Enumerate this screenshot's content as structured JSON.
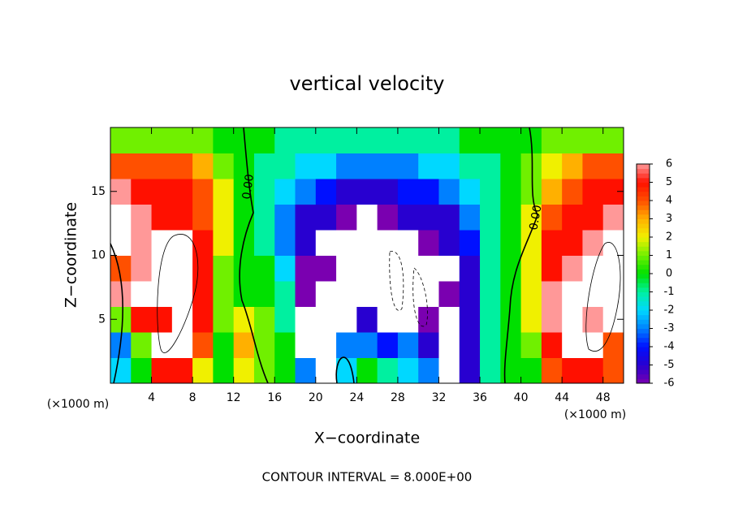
{
  "chart_data": {
    "type": "heatmap",
    "title": "vertical velocity",
    "xlabel": "X−coordinate",
    "ylabel": "Z−coordinate",
    "x_unit_label": "(×1000 m)",
    "footer": "CONTOUR INTERVAL = 8.000E+00",
    "contour_labels": [
      "0.00",
      "0.00"
    ],
    "xlim": [
      0,
      50
    ],
    "ylim": [
      0,
      20
    ],
    "xticks": [
      4,
      8,
      12,
      16,
      20,
      24,
      28,
      32,
      36,
      40,
      44,
      48
    ],
    "yticks": [
      5,
      10,
      15
    ],
    "x": [
      1,
      3,
      5,
      7,
      9,
      11,
      13,
      15,
      17,
      19,
      21,
      23,
      25,
      27,
      29,
      31,
      33,
      35,
      37,
      39,
      41,
      43,
      45,
      47,
      49
    ],
    "z": [
      1,
      3,
      5,
      7,
      9,
      11,
      13,
      15,
      17,
      19
    ],
    "values": [
      [
        -2,
        0,
        5,
        5,
        2,
        0,
        2,
        1,
        0,
        -3,
        -7,
        -2,
        0,
        -1,
        -2,
        -3,
        -7,
        -5,
        -1,
        0,
        0,
        4,
        5,
        5,
        4
      ],
      [
        -3,
        1,
        7,
        7,
        4,
        0,
        3,
        1,
        0,
        -7,
        -7,
        -3,
        -3,
        -4,
        -3,
        -5,
        -7,
        -5,
        -1,
        0,
        1,
        5,
        7,
        7,
        4
      ],
      [
        1,
        5,
        5,
        7,
        5,
        1,
        2,
        1,
        -1,
        -7,
        -7,
        -7,
        -5,
        -7,
        -7,
        -6,
        -7,
        -5,
        -1,
        0,
        2,
        6,
        7,
        6,
        7
      ],
      [
        6,
        7,
        7,
        7,
        5,
        1,
        0,
        0,
        -1,
        -6,
        -7,
        -7,
        -7,
        -7,
        -7,
        -7,
        -6,
        -5,
        -1,
        0,
        2,
        6,
        7,
        7,
        7
      ],
      [
        4,
        6,
        7,
        7,
        5,
        1,
        0,
        0,
        -2,
        -6,
        -6,
        -7,
        -7,
        -7,
        -7,
        -7,
        -7,
        -5,
        -1,
        0,
        2,
        5,
        6,
        7,
        7
      ],
      [
        7,
        6,
        7,
        7,
        5,
        2,
        0,
        -1,
        -3,
        -5,
        -7,
        -7,
        -7,
        -7,
        -7,
        -6,
        -5,
        -4,
        -1,
        0,
        2,
        5,
        5,
        6,
        7
      ],
      [
        7,
        6,
        5,
        5,
        4,
        2,
        0,
        -1,
        -3,
        -5,
        -5,
        -6,
        -7,
        -6,
        -5,
        -5,
        -5,
        -3,
        -1,
        0,
        2,
        4,
        5,
        5,
        6
      ],
      [
        6,
        5,
        5,
        5,
        4,
        2,
        0,
        -1,
        -2,
        -3,
        -4,
        -5,
        -5,
        -5,
        -4,
        -4,
        -3,
        -2,
        -1,
        0,
        1,
        3,
        4,
        5,
        5
      ],
      [
        4,
        4,
        4,
        4,
        3,
        1,
        0,
        -1,
        -1,
        -2,
        -2,
        -3,
        -3,
        -3,
        -3,
        -2,
        -2,
        -1,
        -1,
        0,
        1,
        2,
        3,
        4,
        4
      ],
      [
        1,
        1,
        1,
        1,
        1,
        0,
        0,
        0,
        -1,
        -1,
        -1,
        -1,
        -1,
        -1,
        -1,
        -1,
        -1,
        0,
        0,
        0,
        0,
        1,
        1,
        1,
        1
      ]
    ],
    "colorbar": {
      "ticks": [
        -6,
        -5,
        -4,
        -3,
        -2,
        -1,
        0,
        1,
        2,
        3,
        4,
        5,
        6
      ],
      "colors": [
        "#7a00b0",
        "#2800d0",
        "#0010ff",
        "#0080ff",
        "#00d8ff",
        "#00f0a0",
        "#00e000",
        "#70f000",
        "#f0f000",
        "#ffb000",
        "#ff5000",
        "#ff1000",
        "#ff9898"
      ],
      "out_of_range_color": "#ffffff"
    }
  }
}
